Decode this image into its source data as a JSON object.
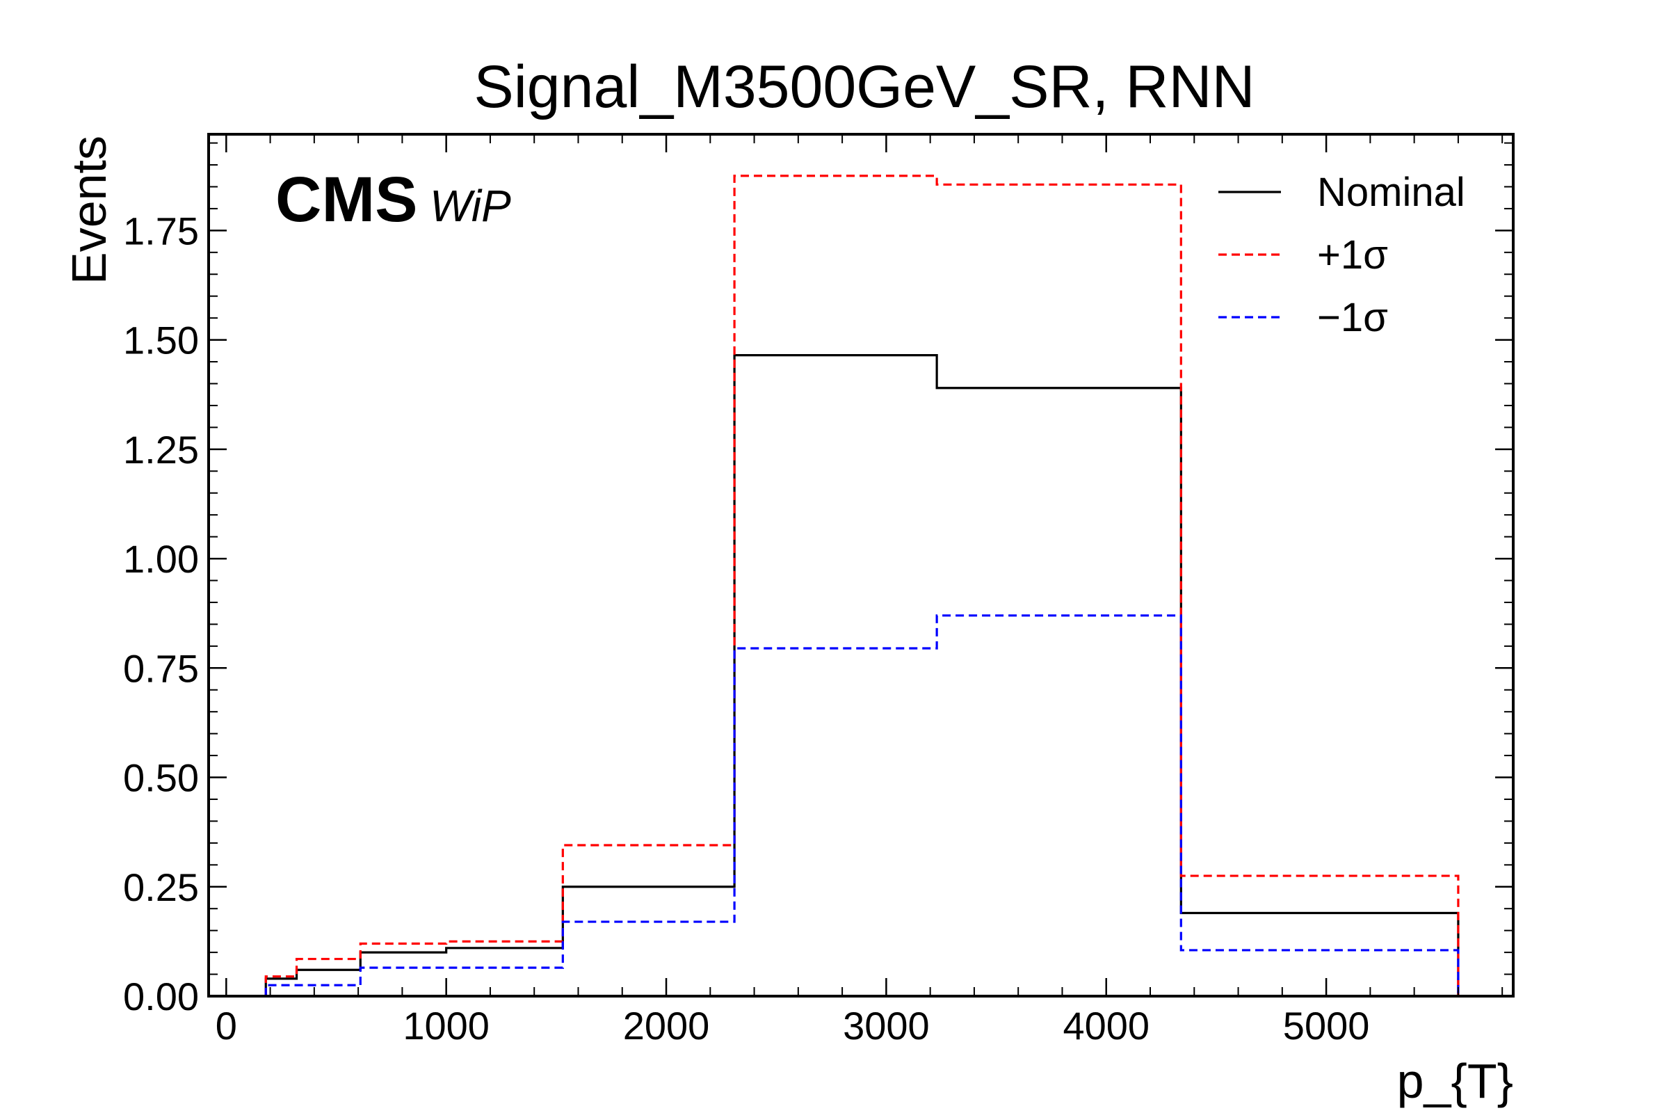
{
  "chart_data": {
    "type": "line",
    "step": true,
    "title": "Signal_M3500GeV_SR, RNN",
    "xlabel": "p_{T}",
    "ylabel": "Events",
    "xlim": [
      -80,
      5850
    ],
    "ylim": [
      0,
      1.97
    ],
    "xticks": [
      0,
      1000,
      2000,
      3000,
      4000,
      5000
    ],
    "xtick_labels": [
      "0",
      "1000",
      "2000",
      "3000",
      "4000",
      "5000"
    ],
    "yticks": [
      0,
      0.25,
      0.5,
      0.75,
      1.0,
      1.25,
      1.5,
      1.75
    ],
    "ytick_labels": [
      "0.00",
      "0.25",
      "0.50",
      "0.75",
      "1.00",
      "1.25",
      "1.50",
      "1.75"
    ],
    "grid": false,
    "legend_position": "top-right",
    "bin_edges": [
      180,
      320,
      610,
      1000,
      1530,
      2310,
      3230,
      4340,
      5600
    ],
    "series": [
      {
        "name": "Nominal",
        "color": "#000000",
        "dashed": false,
        "values": [
          0.04,
          0.06,
          0.1,
          0.11,
          0.25,
          1.465,
          1.39,
          0.19
        ]
      },
      {
        "name": "+1σ",
        "color": "#ff0000",
        "dashed": true,
        "values": [
          0.045,
          0.085,
          0.12,
          0.125,
          0.345,
          1.875,
          1.855,
          0.275
        ]
      },
      {
        "name": "−1σ",
        "color": "#0000ff",
        "dashed": true,
        "values": [
          0.025,
          0.025,
          0.065,
          0.065,
          0.17,
          0.795,
          0.87,
          0.105
        ]
      }
    ],
    "label_main": "CMS",
    "label_sub": "WiP"
  }
}
